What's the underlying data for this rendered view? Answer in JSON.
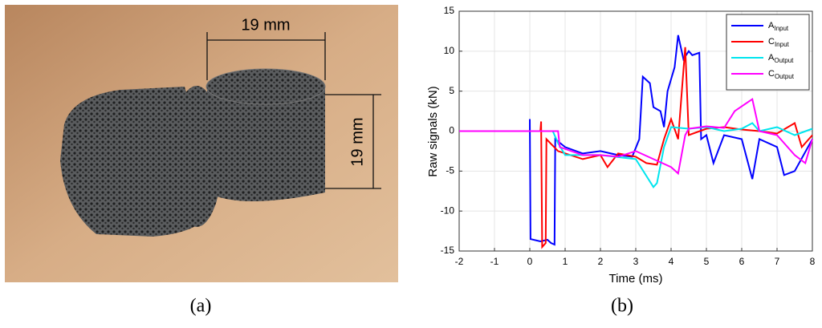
{
  "photo": {
    "dimension_labels": [
      "19 mm",
      "19 mm"
    ]
  },
  "captions": [
    "(a)",
    "(b)"
  ],
  "chart_data": {
    "type": "line",
    "xlabel": "Time (ms)",
    "ylabel": "Raw signals (kN)",
    "xlim": [
      -2,
      8
    ],
    "xticks": [
      -2,
      -1,
      0,
      1,
      2,
      3,
      4,
      5,
      6,
      7,
      8
    ],
    "ylim": [
      -15,
      15
    ],
    "yticks": [
      -15,
      -10,
      -5,
      0,
      5,
      10,
      15
    ],
    "grid": true,
    "legend": "upper right",
    "series": [
      {
        "name": "AInput",
        "color": "#0000ff",
        "x": [
          -2,
          0,
          0,
          0.02,
          0.3,
          0.5,
          0.6,
          0.7,
          0.72,
          1,
          1.5,
          2,
          2.5,
          2.9,
          3.1,
          3.2,
          3.4,
          3.5,
          3.7,
          3.8,
          3.9,
          4.1,
          4.2,
          4.35,
          4.5,
          4.6,
          4.8,
          4.85,
          5,
          5.2,
          5.5,
          6,
          6.3,
          6.5,
          7,
          7.2,
          7.5,
          8
        ],
        "values": [
          0,
          0,
          1.5,
          -13.5,
          -13.8,
          -13.6,
          -14,
          -14.2,
          -1,
          -2,
          -2.8,
          -2.5,
          -3,
          -3.2,
          -1,
          6.8,
          6,
          3,
          2.5,
          0.5,
          5,
          8,
          12,
          9,
          10,
          9.5,
          9.8,
          -1,
          -0.5,
          -4,
          -0.5,
          -1,
          -6,
          -1,
          -2,
          -5.5,
          -5,
          -1
        ]
      },
      {
        "name": "CInput",
        "color": "#ff0000",
        "x": [
          -2,
          0.3,
          0.32,
          0.35,
          0.45,
          0.47,
          0.8,
          1.5,
          2,
          2.2,
          2.5,
          3,
          3.3,
          3.6,
          3.8,
          4,
          4.2,
          4.4,
          4.5,
          5,
          5.5,
          6,
          6.5,
          7,
          7.5,
          7.7,
          8
        ],
        "values": [
          0,
          0,
          1.2,
          -14.5,
          -14,
          -1,
          -2.5,
          -3.5,
          -3,
          -4.5,
          -2.8,
          -3.2,
          -4,
          -4.2,
          -1,
          1.5,
          -1,
          10.5,
          -0.5,
          0.3,
          0.5,
          0.2,
          0,
          -0.3,
          1,
          -2,
          -0.5
        ]
      },
      {
        "name": "AOutput",
        "color": "#00e5ee",
        "x": [
          -2,
          0.65,
          0.8,
          1,
          2,
          3,
          3.5,
          3.6,
          3.8,
          4,
          4.5,
          5,
          5.5,
          6,
          6.3,
          6.5,
          7,
          7.5,
          8
        ],
        "values": [
          0,
          0,
          -1.5,
          -3,
          -3,
          -3.5,
          -7,
          -6.5,
          -2,
          0.5,
          0.3,
          0.5,
          0,
          0.3,
          1,
          0,
          0.5,
          -0.5,
          0.3
        ]
      },
      {
        "name": "COutput",
        "color": "#ff00ff",
        "x": [
          -2,
          0.8,
          0.85,
          1.5,
          2,
          2.5,
          3,
          3.5,
          4,
          4.2,
          4.4,
          4.5,
          5,
          5.5,
          5.8,
          6.3,
          6.5,
          7,
          7.5,
          7.8,
          8
        ],
        "values": [
          0,
          0,
          -2,
          -3,
          -3,
          -3.2,
          -2.5,
          -3.5,
          -4.5,
          -5.3,
          -0.5,
          0.3,
          0.6,
          0.4,
          2.5,
          4,
          0,
          -0.5,
          -3,
          -4,
          -1
        ]
      }
    ]
  }
}
